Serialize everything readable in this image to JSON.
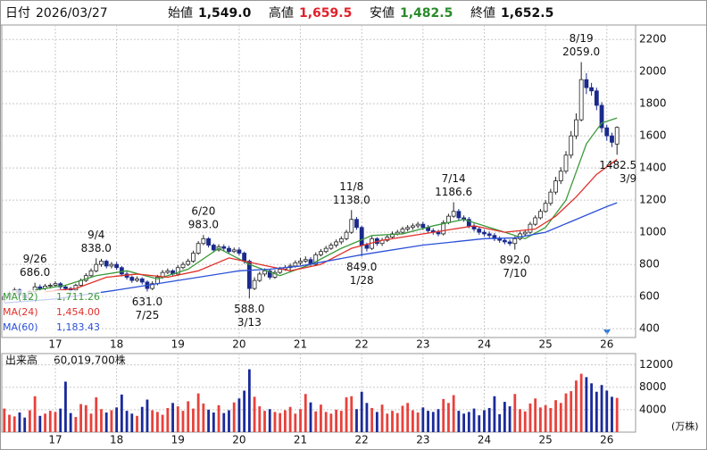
{
  "header": {
    "date_label": "日付",
    "date": "2026/03/27",
    "fields": [
      {
        "name": "始値",
        "value": "1,549.0",
        "color": "#111111"
      },
      {
        "name": "高値",
        "value": "1,659.5",
        "color": "#e0202a"
      },
      {
        "name": "安値",
        "value": "1,482.5",
        "color": "#2a8a2a"
      },
      {
        "name": "終値",
        "value": "1,652.5",
        "color": "#111111"
      }
    ]
  },
  "chart_data": {
    "type": "candlestick",
    "categories": [
      null,
      null,
      null,
      null,
      null,
      null,
      null,
      null,
      null,
      null,
      "17",
      null,
      null,
      null,
      null,
      null,
      null,
      null,
      null,
      null,
      null,
      null,
      "18",
      null,
      null,
      null,
      null,
      null,
      null,
      null,
      null,
      null,
      null,
      null,
      "19",
      null,
      null,
      null,
      null,
      null,
      null,
      null,
      null,
      null,
      null,
      null,
      "20",
      null,
      null,
      null,
      null,
      null,
      null,
      null,
      null,
      null,
      null,
      null,
      "21",
      null,
      null,
      null,
      null,
      null,
      null,
      null,
      null,
      null,
      null,
      null,
      "22",
      null,
      null,
      null,
      null,
      null,
      null,
      null,
      null,
      null,
      null,
      null,
      "23",
      null,
      null,
      null,
      null,
      null,
      null,
      null,
      null,
      null,
      null,
      null,
      "24",
      null,
      null,
      null,
      null,
      null,
      null,
      null,
      null,
      null,
      null,
      null,
      "25",
      null,
      null,
      null,
      null,
      null,
      null,
      null,
      null,
      null,
      null,
      null,
      "26",
      null,
      null
    ],
    "candles": {
      "open": [
        580,
        600,
        620,
        640,
        610,
        590,
        630,
        660,
        650,
        665,
        670,
        680,
        660,
        650,
        640,
        670,
        700,
        730,
        760,
        800,
        820,
        790,
        800,
        780,
        740,
        720,
        700,
        710,
        690,
        650,
        680,
        720,
        750,
        760,
        740,
        780,
        800,
        820,
        870,
        930,
        960,
        920,
        890,
        910,
        900,
        880,
        890,
        870,
        820,
        650,
        700,
        740,
        760,
        720,
        750,
        770,
        780,
        790,
        810,
        820,
        830,
        800,
        860,
        880,
        900,
        920,
        940,
        960,
        1000,
        1080,
        1030,
        920,
        900,
        960,
        930,
        950,
        970,
        990,
        1000,
        1020,
        1030,
        1040,
        1050,
        1030,
        1010,
        1000,
        990,
        1060,
        1100,
        1130,
        1090,
        1080,
        1040,
        1020,
        1000,
        990,
        980,
        960,
        950,
        940,
        930,
        960,
        990,
        1000,
        1050,
        1090,
        1130,
        1180,
        1250,
        1320,
        1380,
        1480,
        1600,
        1700,
        1950,
        1900,
        1880,
        1790,
        1650,
        1600,
        1549
      ],
      "high": [
        615,
        635,
        655,
        650,
        620,
        640,
        686,
        675,
        678,
        682,
        695,
        690,
        670,
        660,
        680,
        712,
        745,
        775,
        838,
        835,
        830,
        815,
        815,
        790,
        755,
        730,
        725,
        720,
        700,
        695,
        735,
        765,
        775,
        770,
        795,
        815,
        835,
        885,
        945,
        983,
        970,
        930,
        925,
        925,
        915,
        905,
        905,
        880,
        830,
        720,
        755,
        775,
        770,
        765,
        785,
        795,
        805,
        825,
        840,
        850,
        845,
        875,
        895,
        915,
        935,
        955,
        975,
        1015,
        1138,
        1095,
        1040,
        935,
        975,
        970,
        965,
        985,
        1005,
        1015,
        1035,
        1045,
        1055,
        1065,
        1065,
        1045,
        1025,
        1015,
        1075,
        1115,
        1186.6,
        1145,
        1105,
        1095,
        1055,
        1035,
        1015,
        1005,
        995,
        975,
        965,
        955,
        975,
        1005,
        1015,
        1065,
        1105,
        1145,
        1200,
        1270,
        1345,
        1405,
        1505,
        1630,
        1740,
        2059,
        1990,
        1930,
        1900,
        1810,
        1670,
        1620,
        1659.5
      ],
      "low": [
        565,
        590,
        610,
        595,
        575,
        580,
        620,
        635,
        640,
        650,
        660,
        645,
        635,
        625,
        630,
        660,
        690,
        720,
        750,
        785,
        775,
        775,
        765,
        725,
        705,
        685,
        690,
        675,
        631,
        640,
        670,
        710,
        740,
        725,
        730,
        770,
        790,
        810,
        860,
        920,
        905,
        875,
        880,
        885,
        865,
        870,
        855,
        805,
        588,
        640,
        690,
        725,
        705,
        710,
        740,
        760,
        765,
        780,
        795,
        810,
        785,
        790,
        850,
        870,
        890,
        905,
        925,
        950,
        990,
        1015,
        849,
        880,
        890,
        915,
        915,
        940,
        960,
        980,
        990,
        1005,
        1015,
        1025,
        1015,
        995,
        985,
        975,
        980,
        1050,
        1090,
        1075,
        1065,
        1025,
        1005,
        985,
        975,
        965,
        945,
        935,
        925,
        915,
        892,
        950,
        975,
        990,
        1040,
        1080,
        1120,
        1165,
        1235,
        1300,
        1365,
        1460,
        1580,
        1690,
        1860,
        1850,
        1760,
        1620,
        1570,
        1530,
        1482.5
      ],
      "close": [
        600,
        620,
        640,
        610,
        590,
        630,
        660,
        650,
        665,
        670,
        680,
        660,
        650,
        640,
        670,
        700,
        730,
        760,
        800,
        820,
        790,
        800,
        780,
        740,
        720,
        700,
        710,
        690,
        650,
        680,
        720,
        750,
        760,
        740,
        780,
        800,
        820,
        870,
        930,
        960,
        920,
        890,
        910,
        900,
        880,
        890,
        870,
        820,
        650,
        700,
        740,
        760,
        720,
        750,
        770,
        780,
        790,
        810,
        820,
        830,
        800,
        860,
        880,
        900,
        920,
        940,
        960,
        1000,
        1080,
        1030,
        920,
        900,
        960,
        930,
        950,
        970,
        990,
        1000,
        1020,
        1030,
        1040,
        1050,
        1030,
        1010,
        1000,
        990,
        1060,
        1100,
        1130,
        1090,
        1080,
        1040,
        1020,
        1000,
        990,
        980,
        960,
        950,
        940,
        930,
        960,
        990,
        1000,
        1050,
        1090,
        1130,
        1180,
        1250,
        1320,
        1380,
        1480,
        1600,
        1700,
        1950,
        1900,
        1880,
        1790,
        1650,
        1600,
        1560,
        1652.5
      ],
      "up_color": "#ffffff",
      "down_color": "#1a2a8c",
      "outline_color": "#222222"
    },
    "ylim": [
      345,
      2290
    ],
    "yticks": [
      400,
      600,
      800,
      1000,
      1200,
      1400,
      1600,
      1800,
      2000,
      2200
    ],
    "grid": true,
    "moving_averages": [
      {
        "name": "MA(12)",
        "color": "#3a9a3a",
        "value_label": "1,711.26",
        "x": [
          6,
          12,
          18,
          24,
          30,
          36,
          42,
          48,
          54,
          60,
          66,
          72,
          78,
          84,
          90,
          96,
          102,
          106,
          110,
          114,
          117,
          120
        ],
        "values": [
          640,
          670,
          730,
          760,
          710,
          770,
          900,
          800,
          730,
          800,
          900,
          980,
          990,
          1040,
          1080,
          1020,
          960,
          1030,
          1200,
          1550,
          1680,
          1711.26
        ]
      },
      {
        "name": "MA(24)",
        "color": "#e0302a",
        "value_label": "1,454.00",
        "x": [
          8,
          14,
          20,
          26,
          32,
          38,
          44,
          50,
          56,
          62,
          68,
          74,
          80,
          86,
          92,
          98,
          104,
          108,
          112,
          116,
          120
        ],
        "values": [
          630,
          650,
          720,
          740,
          720,
          760,
          840,
          800,
          760,
          800,
          900,
          950,
          980,
          1010,
          1040,
          1000,
          1020,
          1100,
          1220,
          1360,
          1454
        ]
      },
      {
        "name": "MA(60)",
        "color": "#2a50d8",
        "value_label": "1,183.43",
        "x": [
          0,
          10,
          22,
          34,
          46,
          52,
          58,
          70,
          82,
          94,
          100,
          106,
          112,
          118,
          120
        ],
        "values": [
          560,
          585,
          640,
          700,
          760,
          770,
          790,
          860,
          920,
          960,
          965,
          1000,
          1080,
          1160,
          1183.43
        ]
      }
    ],
    "annotations": [
      {
        "date": "9/26",
        "value": 686,
        "label": "686.0"
      },
      {
        "date": "9/4",
        "value": 838,
        "label": "838.0"
      },
      {
        "date": "7/25",
        "value": 631,
        "label": "631.0"
      },
      {
        "date": "6/20",
        "value": 983,
        "label": "983.0"
      },
      {
        "date": "3/13",
        "value": 588,
        "label": "588.0"
      },
      {
        "date": "11/8",
        "value": 1138,
        "label": "1138.0"
      },
      {
        "date": "1/28",
        "value": 849,
        "label": "849.0"
      },
      {
        "date": "7/14",
        "value": 1186.6,
        "label": "1186.6"
      },
      {
        "date": "7/10",
        "value": 892,
        "label": "892.0"
      },
      {
        "date": "8/19",
        "value": 2059,
        "label": "2059.0"
      },
      {
        "date": "3/9",
        "value": 1482.5,
        "label": "1482.5"
      }
    ],
    "volume": {
      "title": "出来高",
      "total": "60,019,700株",
      "unit": "(万株)",
      "values": [
        4200,
        3100,
        2800,
        3500,
        2600,
        3900,
        6400,
        2900,
        3300,
        3800,
        3600,
        4200,
        9000,
        3400,
        2700,
        5000,
        4800,
        3300,
        6200,
        4100,
        3500,
        3900,
        4400,
        6700,
        3800,
        3300,
        2900,
        4500,
        5800,
        3900,
        3600,
        3100,
        4300,
        5200,
        4600,
        3800,
        5500,
        4200,
        6900,
        5100,
        4000,
        3500,
        4800,
        3400,
        3900,
        5300,
        6000,
        7400,
        11200,
        6300,
        4600,
        3800,
        4100,
        3600,
        3400,
        3900,
        4500,
        3300,
        4100,
        6800,
        5300,
        3700,
        4900,
        3600,
        3300,
        4000,
        3800,
        6200,
        6400,
        4100,
        7200,
        5200,
        4300,
        3600,
        4900,
        3300,
        3800,
        3400,
        4700,
        5200,
        3900,
        3500,
        4400,
        3800,
        3600,
        4100,
        5900,
        5200,
        6600,
        3800,
        3300,
        3600,
        4200,
        3000,
        3900,
        4300,
        6400,
        3200,
        5400,
        4600,
        6800,
        4100,
        3700,
        5100,
        6000,
        4400,
        4800,
        4300,
        5700,
        5200,
        6900,
        7300,
        9200,
        10400,
        9800,
        8700,
        7200,
        8400,
        7400,
        6300,
        6100
      ],
      "up_color": "#e8413c",
      "down_color": "#1a2a9a",
      "ylim": [
        0,
        14000
      ],
      "yticks": [
        4000,
        8000,
        12000
      ]
    }
  }
}
